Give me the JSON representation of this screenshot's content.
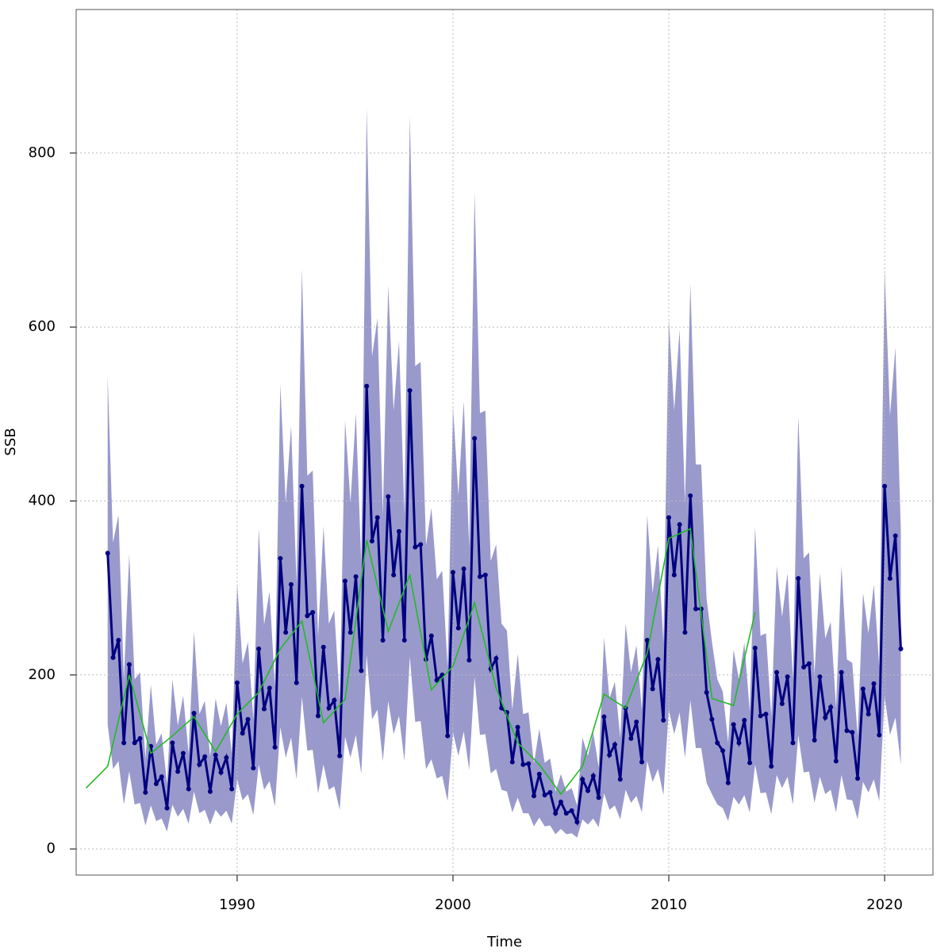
{
  "chart_data": {
    "type": "line",
    "xlabel": "Time",
    "ylabel": "SSB",
    "xlim": [
      1982.54,
      2022.24
    ],
    "ylim": [
      -30,
      965
    ],
    "xticks": [
      1990,
      2000,
      2010,
      2020
    ],
    "yticks": [
      0,
      200,
      400,
      600,
      800
    ],
    "grid": true,
    "band": {
      "color": "#9999cc",
      "x": [
        1984,
        1984.25,
        1984.5,
        1984.75,
        1985,
        1985.25,
        1985.5,
        1985.75,
        1986,
        1986.25,
        1986.5,
        1986.75,
        1987,
        1987.25,
        1987.5,
        1987.75,
        1988,
        1988.25,
        1988.5,
        1988.75,
        1989,
        1989.25,
        1989.5,
        1989.75,
        1990,
        1990.25,
        1990.5,
        1990.75,
        1991,
        1991.25,
        1991.5,
        1991.75,
        1992,
        1992.25,
        1992.5,
        1992.75,
        1993,
        1993.25,
        1993.5,
        1993.75,
        1994,
        1994.25,
        1994.5,
        1994.75,
        1995,
        1995.25,
        1995.5,
        1995.75,
        1996,
        1996.25,
        1996.5,
        1996.75,
        1997,
        1997.25,
        1997.5,
        1997.75,
        1998,
        1998.25,
        1998.5,
        1998.75,
        1999,
        1999.25,
        1999.5,
        1999.75,
        2000,
        2000.25,
        2000.5,
        2000.75,
        2001,
        2001.25,
        2001.5,
        2001.75,
        2002,
        2002.25,
        2002.5,
        2002.75,
        2003,
        2003.25,
        2003.5,
        2003.75,
        2004,
        2004.25,
        2004.5,
        2004.75,
        2005,
        2005.25,
        2005.5,
        2005.75,
        2006,
        2006.25,
        2006.5,
        2006.75,
        2007,
        2007.25,
        2007.5,
        2007.75,
        2008,
        2008.25,
        2008.5,
        2008.75,
        2009,
        2009.25,
        2009.5,
        2009.75,
        2010,
        2010.25,
        2010.5,
        2010.75,
        2011,
        2011.25,
        2011.5,
        2011.75,
        2012,
        2012.25,
        2012.5,
        2012.75,
        2013,
        2013.25,
        2013.5,
        2013.75,
        2014,
        2014.25,
        2014.5,
        2014.75,
        2015,
        2015.25,
        2015.5,
        2015.75,
        2016,
        2016.25,
        2016.5,
        2016.75,
        2017,
        2017.25,
        2017.5,
        2017.75,
        2018,
        2018.25,
        2018.5,
        2018.75,
        2019,
        2019.25,
        2019.5,
        2019.75,
        2020,
        2020.25,
        2020.5,
        2020.75
      ],
      "upper": [
        544,
        352,
        384,
        195,
        339,
        195,
        203,
        104,
        189,
        120,
        133,
        75,
        195,
        142,
        176,
        110,
        250,
        155,
        170,
        106,
        173,
        141,
        168,
        110,
        306,
        213,
        238,
        149,
        368,
        258,
        296,
        187,
        534,
        398,
        486,
        306,
        667,
        429,
        435,
        245,
        371,
        259,
        274,
        171,
        493,
        398,
        501,
        328,
        851,
        566,
        610,
        384,
        648,
        504,
        584,
        384,
        843,
        555,
        560,
        349,
        392,
        310,
        320,
        208,
        509,
        406,
        515,
        347,
        755,
        501,
        504,
        331,
        350,
        259,
        251,
        160,
        224,
        155,
        157,
        98,
        138,
        99,
        104,
        66,
        86,
        66,
        70,
        50,
        128,
        107,
        134,
        94,
        243,
        173,
        192,
        128,
        259,
        203,
        234,
        160,
        384,
        294,
        349,
        237,
        610,
        504,
        597,
        398,
        650,
        442,
        442,
        288,
        238,
        195,
        181,
        122,
        229,
        195,
        237,
        158,
        370,
        245,
        248,
        152,
        325,
        267,
        317,
        195,
        498,
        334,
        341,
        200,
        317,
        242,
        261,
        162,
        325,
        218,
        214,
        130,
        294,
        248,
        304,
        210,
        667,
        498,
        576,
        368
      ],
      "lower": [
        143,
        92,
        101,
        51,
        89,
        51,
        53,
        27,
        50,
        32,
        35,
        20,
        51,
        37,
        46,
        29,
        66,
        41,
        45,
        28,
        45,
        37,
        44,
        29,
        80,
        56,
        63,
        39,
        97,
        68,
        78,
        49,
        140,
        105,
        128,
        80,
        175,
        113,
        114,
        64,
        97,
        68,
        72,
        45,
        129,
        105,
        131,
        86,
        223,
        149,
        160,
        101,
        170,
        132,
        153,
        101,
        221,
        146,
        147,
        92,
        103,
        81,
        84,
        55,
        134,
        107,
        135,
        91,
        198,
        131,
        132,
        87,
        92,
        68,
        66,
        42,
        59,
        41,
        41,
        26,
        36,
        26,
        27,
        17,
        23,
        17,
        18,
        13,
        34,
        28,
        35,
        25,
        64,
        45,
        50,
        34,
        68,
        53,
        61,
        42,
        101,
        77,
        92,
        62,
        160,
        132,
        157,
        105,
        171,
        116,
        116,
        76,
        63,
        51,
        47,
        32,
        60,
        51,
        62,
        42,
        97,
        64,
        65,
        40,
        85,
        70,
        83,
        51,
        131,
        88,
        89,
        53,
        83,
        63,
        68,
        42,
        85,
        57,
        56,
        34,
        77,
        65,
        80,
        55,
        175,
        131,
        151,
        97
      ]
    },
    "series": [
      {
        "color": "#000080",
        "markers": true,
        "x": [
          1984,
          1984.25,
          1984.5,
          1984.75,
          1985,
          1985.25,
          1985.5,
          1985.75,
          1986,
          1986.25,
          1986.5,
          1986.75,
          1987,
          1987.25,
          1987.5,
          1987.75,
          1988,
          1988.25,
          1988.5,
          1988.75,
          1989,
          1989.25,
          1989.5,
          1989.75,
          1990,
          1990.25,
          1990.5,
          1990.75,
          1991,
          1991.25,
          1991.5,
          1991.75,
          1992,
          1992.25,
          1992.5,
          1992.75,
          1993,
          1993.25,
          1993.5,
          1993.75,
          1994,
          1994.25,
          1994.5,
          1994.75,
          1995,
          1995.25,
          1995.5,
          1995.75,
          1996,
          1996.25,
          1996.5,
          1996.75,
          1997,
          1997.25,
          1997.5,
          1997.75,
          1998,
          1998.25,
          1998.5,
          1998.75,
          1999,
          1999.25,
          1999.5,
          1999.75,
          2000,
          2000.25,
          2000.5,
          2000.75,
          2001,
          2001.25,
          2001.5,
          2001.75,
          2002,
          2002.25,
          2002.5,
          2002.75,
          2003,
          2003.25,
          2003.5,
          2003.75,
          2004,
          2004.25,
          2004.5,
          2004.75,
          2005,
          2005.25,
          2005.5,
          2005.75,
          2006,
          2006.25,
          2006.5,
          2006.75,
          2007,
          2007.25,
          2007.5,
          2007.75,
          2008,
          2008.25,
          2008.5,
          2008.75,
          2009,
          2009.25,
          2009.5,
          2009.75,
          2010,
          2010.25,
          2010.5,
          2010.75,
          2011,
          2011.25,
          2011.5,
          2011.75,
          2012,
          2012.25,
          2012.5,
          2012.75,
          2013,
          2013.25,
          2013.5,
          2013.75,
          2014,
          2014.25,
          2014.5,
          2014.75,
          2015,
          2015.25,
          2015.5,
          2015.75,
          2016,
          2016.25,
          2016.5,
          2016.75,
          2017,
          2017.25,
          2017.5,
          2017.75,
          2018,
          2018.25,
          2018.5,
          2018.75,
          2019,
          2019.25,
          2019.5,
          2019.75,
          2020,
          2020.25,
          2020.5,
          2020.75
        ],
        "values": [
          340,
          220,
          240,
          122,
          212,
          122,
          127,
          65,
          118,
          75,
          83,
          47,
          122,
          89,
          110,
          69,
          156,
          97,
          106,
          66,
          108,
          88,
          105,
          69,
          191,
          133,
          149,
          93,
          230,
          161,
          185,
          117,
          334,
          249,
          304,
          191,
          417,
          268,
          272,
          153,
          232,
          162,
          171,
          107,
          308,
          249,
          313,
          205,
          532,
          354,
          381,
          240,
          405,
          315,
          365,
          240,
          527,
          347,
          350,
          218,
          245,
          194,
          200,
          130,
          318,
          254,
          322,
          217,
          472,
          313,
          315,
          207,
          219,
          162,
          157,
          100,
          140,
          97,
          98,
          61,
          86,
          62,
          65,
          41,
          54,
          41,
          44,
          31,
          80,
          67,
          84,
          59,
          152,
          108,
          120,
          80,
          162,
          127,
          146,
          100,
          240,
          184,
          218,
          148,
          381,
          315,
          373,
          249,
          406,
          276,
          276,
          180,
          149,
          122,
          113,
          76,
          143,
          122,
          148,
          99,
          231,
          153,
          155,
          95,
          203,
          167,
          198,
          122,
          311,
          209,
          213,
          125,
          198,
          151,
          163,
          101,
          203,
          136,
          134,
          81,
          184,
          155,
          190,
          131,
          417,
          311,
          360,
          230
        ]
      },
      {
        "color": "#22bb22",
        "markers": false,
        "x": [
          1983,
          1984,
          1985,
          1986,
          1987,
          1988,
          1989,
          1990,
          1991,
          1992,
          1993,
          1994,
          1995,
          1996,
          1997,
          1998,
          1999,
          2000,
          2001,
          2002,
          2003,
          2004,
          2005,
          2006,
          2007,
          2008,
          2009,
          2010,
          2011,
          2012,
          2013,
          2014
        ],
        "values": [
          70,
          95,
          200,
          110,
          130,
          152,
          112,
          155,
          180,
          230,
          262,
          145,
          172,
          355,
          250,
          315,
          183,
          210,
          283,
          185,
          122,
          97,
          63,
          95,
          178,
          162,
          225,
          357,
          368,
          173,
          165,
          272
        ]
      }
    ]
  }
}
